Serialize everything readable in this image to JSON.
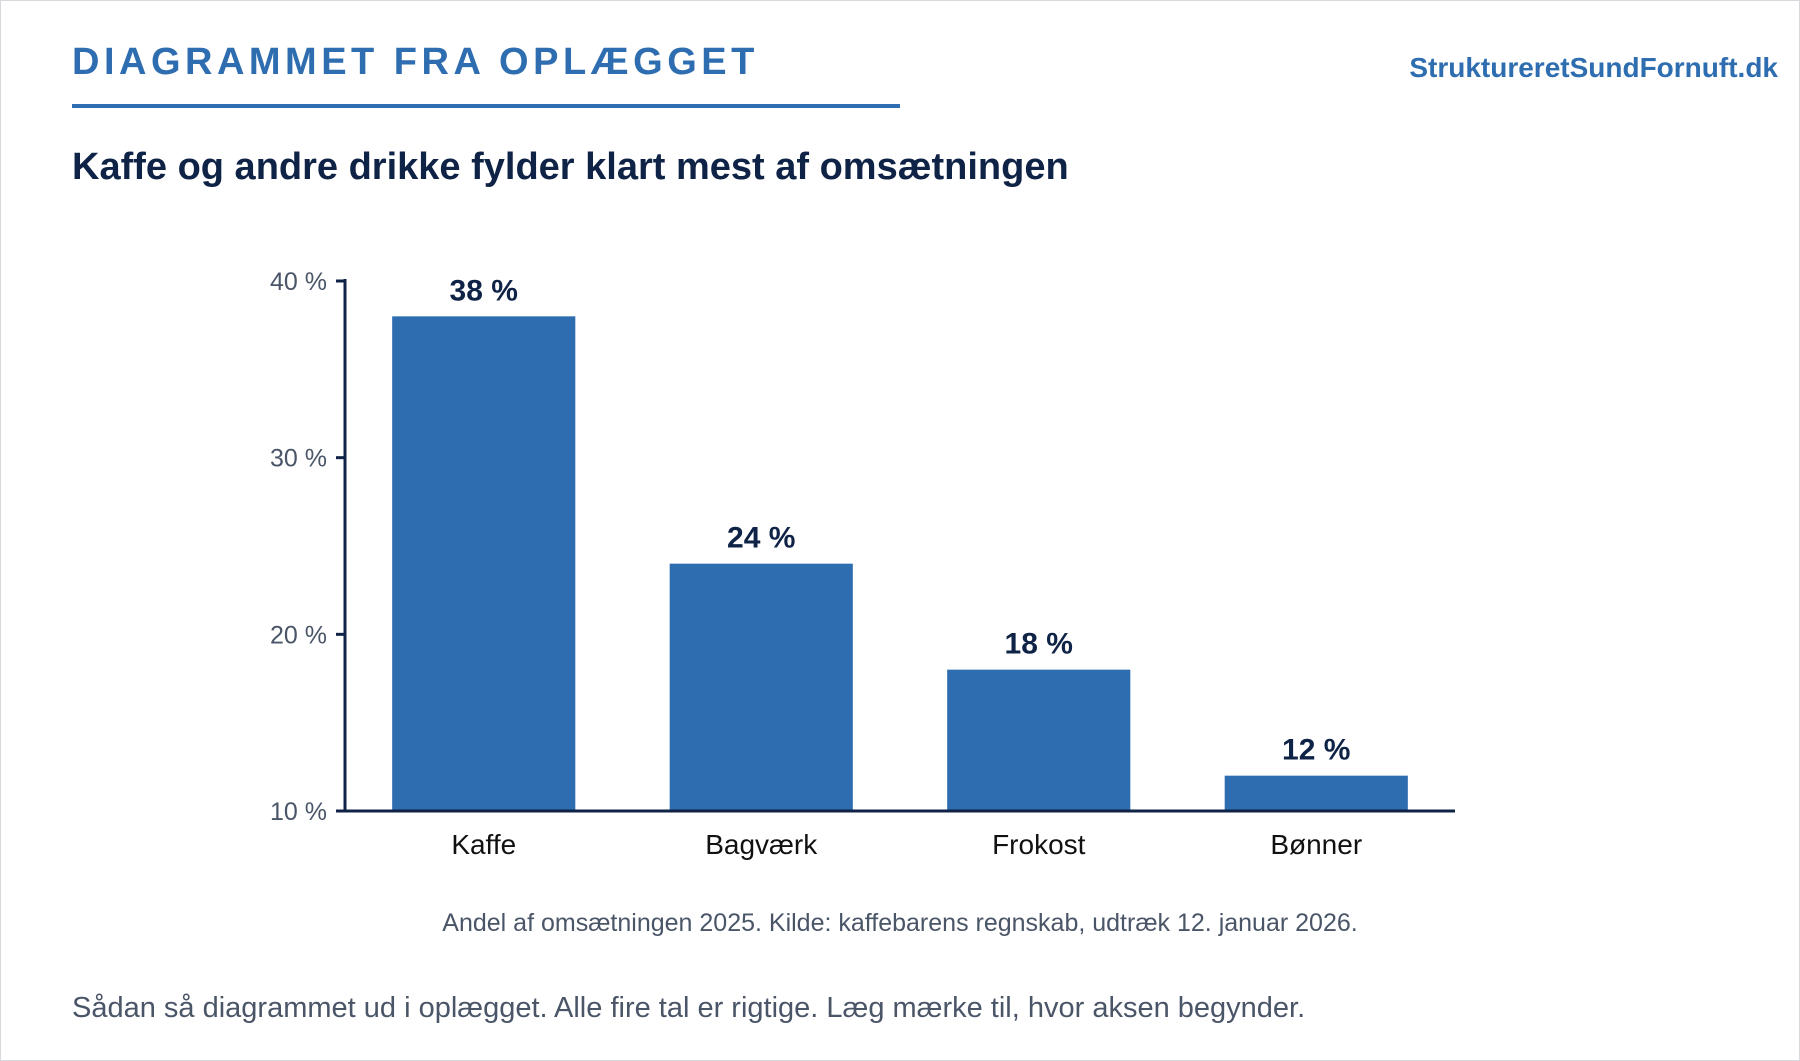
{
  "header": {
    "section_label": "DIAGRAMMET FRA OPLÆGGET",
    "site_name": "StruktureretSundFornuft.dk"
  },
  "chart_data": {
    "type": "bar",
    "title": "Kaffe og andre drikke fylder klart mest af omsætningen",
    "categories": [
      "Kaffe",
      "Bagværk",
      "Frokost",
      "Bønner"
    ],
    "values": [
      38,
      24,
      18,
      12
    ],
    "value_labels": [
      "38 %",
      "24 %",
      "18 %",
      "12 %"
    ],
    "ylim": [
      10,
      40
    ],
    "yticks": [
      10,
      20,
      30,
      40
    ],
    "ytick_labels": [
      "10 %",
      "20 %",
      "30 %",
      "40 %"
    ],
    "xlabel": "",
    "ylabel": "",
    "grid": false,
    "legend": "none",
    "bar_color": "#2e6db0"
  },
  "caption": "Andel af omsætningen 2025. Kilde: kaffebarens regnskab, udtræk 12. januar 2026.",
  "note": "Sådan så diagrammet ud i oplægget. Alle fire tal er rigtige. Læg mærke til, hvor aksen begynder."
}
